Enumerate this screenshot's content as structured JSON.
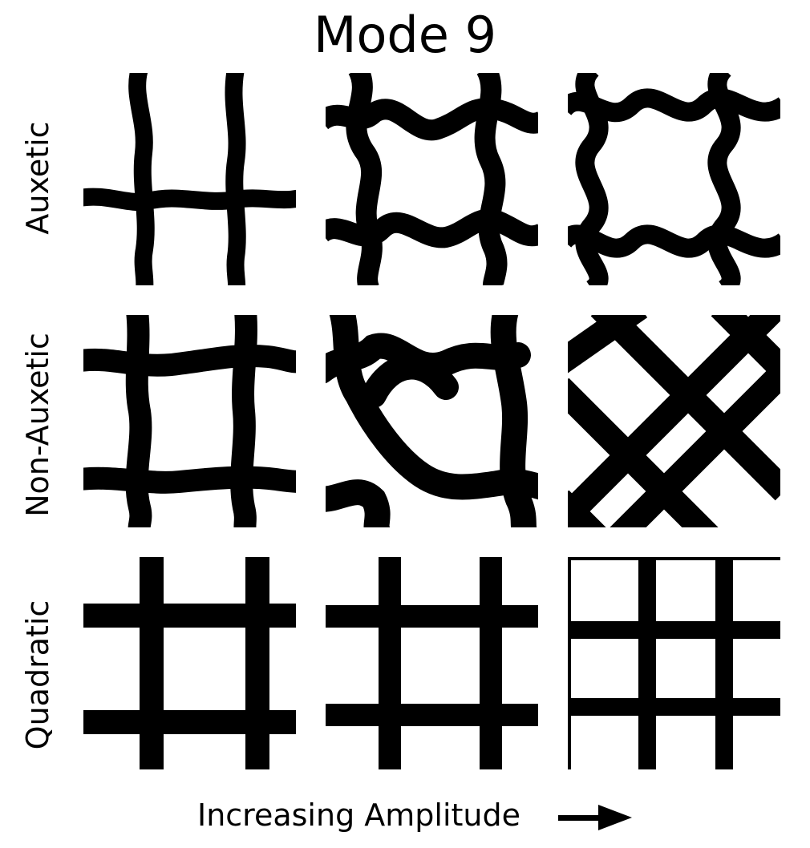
{
  "figure": {
    "title": "Mode 9",
    "rows": [
      {
        "label": "Auxetic",
        "id": "auxetic"
      },
      {
        "label": "Non-Auxetic",
        "id": "non-auxetic"
      },
      {
        "label": "Quadratic",
        "id": "quadratic"
      }
    ],
    "x_axis_label": "Increasing Amplitude",
    "amplitude_steps": 3
  },
  "colors": {
    "material": "#000000",
    "void": "#ffffff"
  }
}
